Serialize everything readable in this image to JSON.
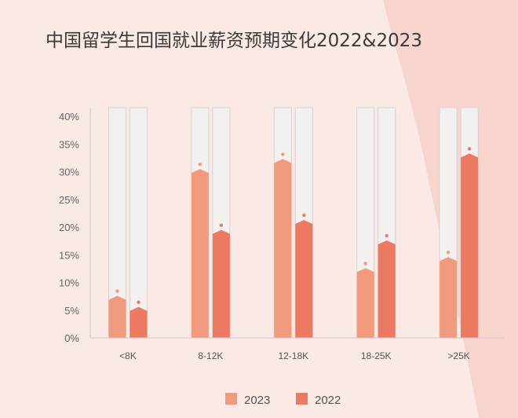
{
  "chart_data": {
    "type": "bar",
    "title": "中国留学生回国就业薪资预期变化2022&2023",
    "categories": [
      "<8K",
      "8-12K",
      "12-18K",
      "18-25K",
      ">25K"
    ],
    "series": [
      {
        "name": "2023",
        "values": [
          7.3,
          30.2,
          32.0,
          12.3,
          14.3
        ],
        "color": "#f29a7e"
      },
      {
        "name": "2022",
        "values": [
          5.3,
          19.2,
          21.0,
          17.3,
          33.0
        ],
        "color": "#ec7a63"
      }
    ],
    "yticks": [
      "0%",
      "5%",
      "10%",
      "15%",
      "20%",
      "25%",
      "30%",
      "35%",
      "40%"
    ],
    "ylim": [
      0,
      40
    ],
    "ytick_step": 5,
    "legend_position": "bottom-center",
    "background_color": "#fbe9e5",
    "track_color": "#f3f0f0",
    "track_border_color": "#d9d2d2",
    "accent_blob_color": "#f7d5cd"
  }
}
